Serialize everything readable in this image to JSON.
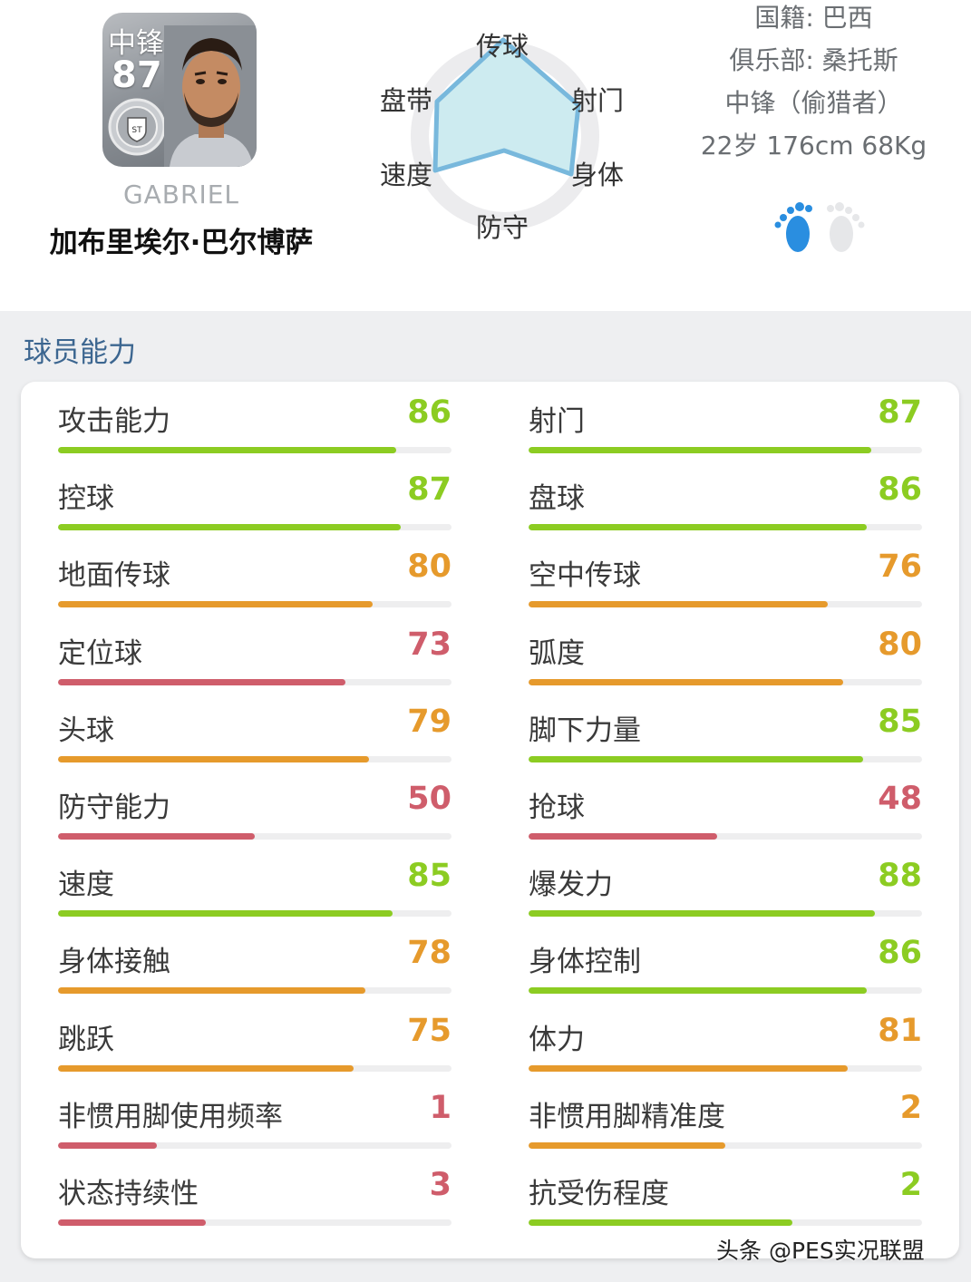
{
  "player": {
    "position": "中锋",
    "rating": "87",
    "english_name": "GABRIEL",
    "chinese_name": "加布里埃尔·巴尔博萨"
  },
  "radar": {
    "labels": {
      "top": "传球",
      "upper_right": "射门",
      "lower_right": "身体",
      "bottom": "防守",
      "lower_left": "速度",
      "upper_left": "盘带"
    }
  },
  "info": {
    "nationality": "国籍: 巴西",
    "club": "俱乐部: 桑托斯",
    "role": "中锋（偷猎者）",
    "body": "22岁 176cm 68Kg"
  },
  "icons": {
    "card_badge": "club-badge-icon",
    "footedness": "feet-icon"
  },
  "colors": {
    "high": "#8ccc22",
    "mid": "#e69a2c",
    "low": "#cf5d6b",
    "accent": "#3c6690",
    "radar_fill": "#cdebf0",
    "radar_stroke": "#78b8dc"
  },
  "section": {
    "title": "球员能力"
  },
  "stats": {
    "left": [
      {
        "name": "攻击能力",
        "value": "86",
        "level": 0.86,
        "tier": "g"
      },
      {
        "name": "控球",
        "value": "87",
        "level": 0.87,
        "tier": "g"
      },
      {
        "name": "地面传球",
        "value": "80",
        "level": 0.8,
        "tier": "o"
      },
      {
        "name": "定位球",
        "value": "73",
        "level": 0.73,
        "tier": "r"
      },
      {
        "name": "头球",
        "value": "79",
        "level": 0.79,
        "tier": "o"
      },
      {
        "name": "防守能力",
        "value": "50",
        "level": 0.5,
        "tier": "r"
      },
      {
        "name": "速度",
        "value": "85",
        "level": 0.85,
        "tier": "g"
      },
      {
        "name": "身体接触",
        "value": "78",
        "level": 0.78,
        "tier": "o"
      },
      {
        "name": "跳跃",
        "value": "75",
        "level": 0.75,
        "tier": "o"
      },
      {
        "name": "非惯用脚使用频率",
        "value": "1",
        "level": 0.25,
        "tier": "r"
      },
      {
        "name": "状态持续性",
        "value": "3",
        "level": 0.375,
        "tier": "r"
      }
    ],
    "right": [
      {
        "name": "射门",
        "value": "87",
        "level": 0.87,
        "tier": "g"
      },
      {
        "name": "盘球",
        "value": "86",
        "level": 0.86,
        "tier": "g"
      },
      {
        "name": "空中传球",
        "value": "76",
        "level": 0.76,
        "tier": "o"
      },
      {
        "name": "弧度",
        "value": "80",
        "level": 0.8,
        "tier": "o"
      },
      {
        "name": "脚下力量",
        "value": "85",
        "level": 0.85,
        "tier": "g"
      },
      {
        "name": "抢球",
        "value": "48",
        "level": 0.48,
        "tier": "r"
      },
      {
        "name": "爆发力",
        "value": "88",
        "level": 0.88,
        "tier": "g"
      },
      {
        "name": "身体控制",
        "value": "86",
        "level": 0.86,
        "tier": "g"
      },
      {
        "name": "体力",
        "value": "81",
        "level": 0.81,
        "tier": "o"
      },
      {
        "name": "非惯用脚精准度",
        "value": "2",
        "level": 0.5,
        "tier": "o"
      },
      {
        "name": "抗受伤程度",
        "value": "2",
        "level": 0.67,
        "tier": "g"
      }
    ]
  },
  "watermark": "头条 @PES实况联盟"
}
